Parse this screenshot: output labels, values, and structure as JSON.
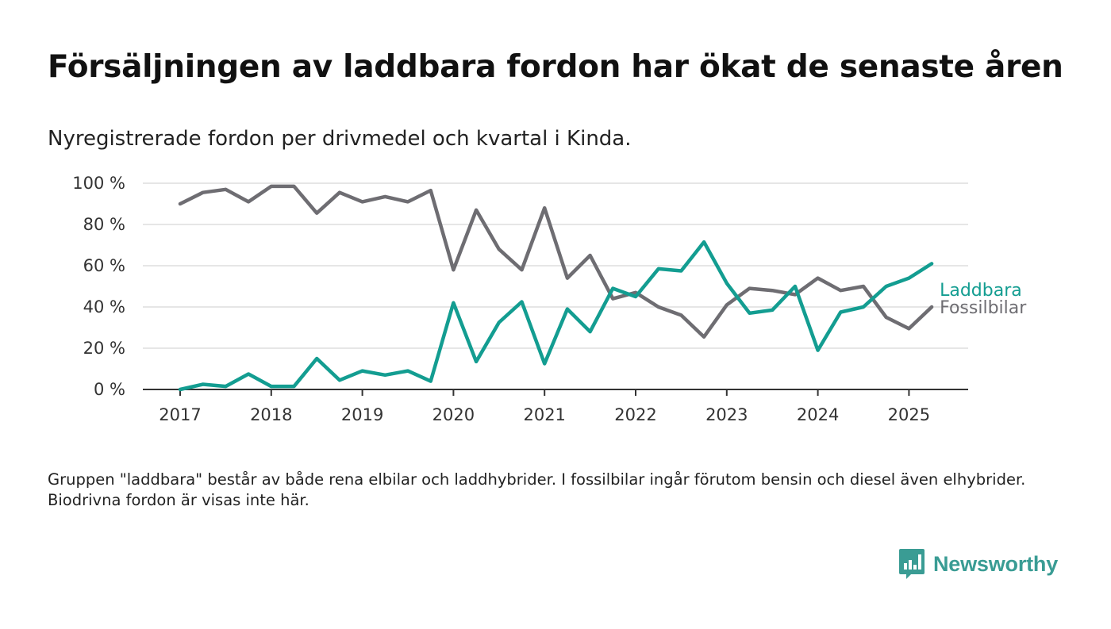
{
  "header": {
    "title": "Försäljningen av laddbara fordon har ökat de senaste åren",
    "subtitle": "Nyregistrerade fordon per drivmedel och kvartal i Kinda."
  },
  "footer": {
    "note": "Gruppen \"laddbara\" består av både rena elbilar och laddhybrider. I fossilbilar ingår förutom bensin och diesel även elhybrider. Biodrivna fordon är visas inte här.",
    "brand": "Newsworthy"
  },
  "chart_data": {
    "type": "line",
    "title": "Försäljningen av laddbara fordon har ökat de senaste åren",
    "subtitle": "Nyregistrerade fordon per drivmedel och kvartal i Kinda.",
    "x_ticks": [
      "2017",
      "2018",
      "2019",
      "2020",
      "2021",
      "2022",
      "2023",
      "2024",
      "2025"
    ],
    "y_ticks": [
      "0 %",
      "20 %",
      "40 %",
      "60 %",
      "80 %",
      "100 %"
    ],
    "y_tick_values": [
      0,
      20,
      40,
      60,
      80,
      100
    ],
    "ylim": [
      0,
      100
    ],
    "x_unit": "year-quarter",
    "x": [
      "2017 Q1",
      "2017 Q2",
      "2017 Q3",
      "2017 Q4",
      "2018 Q1",
      "2018 Q2",
      "2018 Q3",
      "2018 Q4",
      "2019 Q1",
      "2019 Q2",
      "2019 Q3",
      "2019 Q4",
      "2020 Q1",
      "2020 Q2",
      "2020 Q3",
      "2020 Q4",
      "2021 Q1",
      "2021 Q2",
      "2021 Q3",
      "2021 Q4",
      "2022 Q1",
      "2022 Q2",
      "2022 Q3",
      "2022 Q4",
      "2023 Q1",
      "2023 Q2",
      "2023 Q3",
      "2023 Q4",
      "2024 Q1",
      "2024 Q2",
      "2024 Q3",
      "2024 Q4",
      "2025 Q1",
      "2025 Q2"
    ],
    "grid": true,
    "legend": "line-end labels",
    "series": [
      {
        "name": "Fossilbilar",
        "color": "#6e6d72",
        "values": [
          90,
          95.5,
          97,
          91,
          98.5,
          98.5,
          85.5,
          95.5,
          91,
          93.5,
          91,
          96.5,
          58,
          87,
          68,
          58,
          88,
          54,
          65,
          44,
          47,
          40,
          36,
          25.5,
          41,
          49,
          48,
          46,
          54,
          48,
          50,
          35,
          29.5,
          40
        ]
      },
      {
        "name": "Laddbara",
        "color": "#139d91",
        "values": [
          0,
          2.5,
          1.5,
          7.5,
          1.5,
          1.5,
          15,
          4.5,
          9,
          7,
          9,
          4,
          42,
          13.5,
          32.5,
          42.5,
          12.5,
          39,
          28,
          49,
          45,
          58.5,
          57.5,
          71.5,
          51.5,
          37,
          38.5,
          50,
          19,
          37.5,
          40,
          50,
          54,
          61
        ]
      }
    ]
  }
}
